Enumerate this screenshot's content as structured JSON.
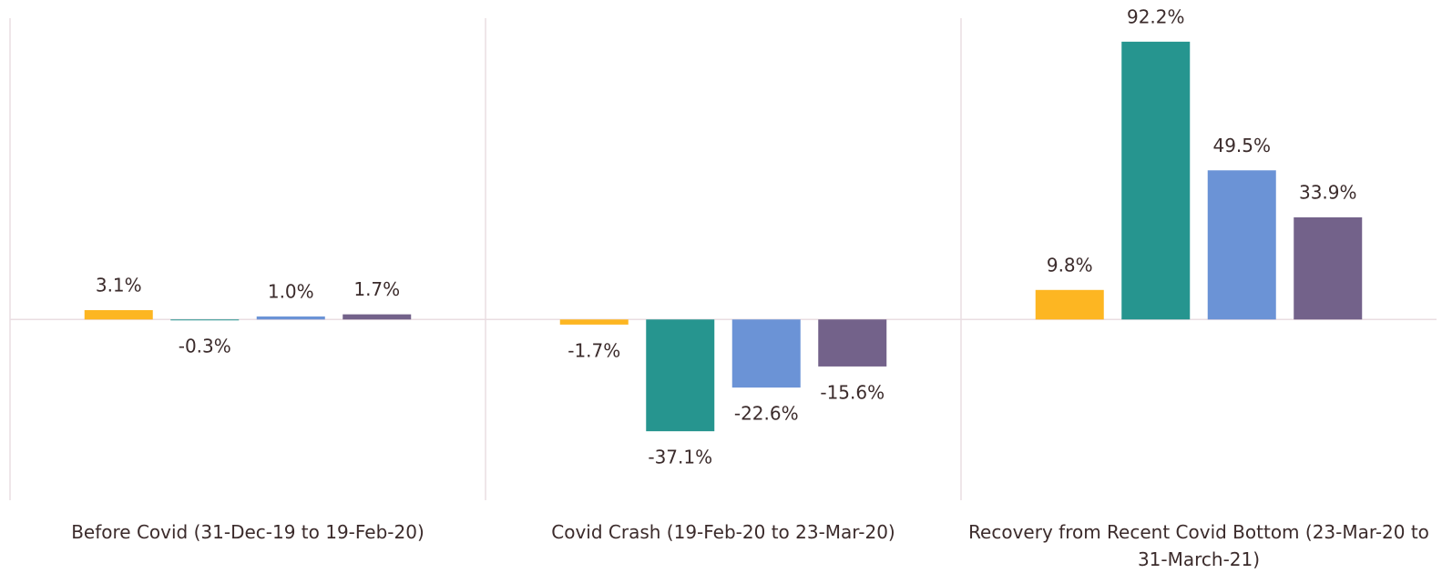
{
  "chart_data": {
    "type": "bar",
    "categories": [
      "Before Covid (31-Dec-19 to 19-Feb-20)",
      "Covid Crash (19-Feb-20 to 23-Mar-20)",
      "Recovery from Recent Covid Bottom (23-Mar-20 to 31-March-21)"
    ],
    "series": [
      {
        "color": "#fdb622",
        "values": [
          3.1,
          -1.7,
          9.8
        ],
        "value_labels": [
          "3.1%",
          "-1.7%",
          "9.8%"
        ]
      },
      {
        "color": "#26958f",
        "values": [
          -0.3,
          -37.1,
          92.2
        ],
        "value_labels": [
          "-0.3%",
          "-37.1%",
          "92.2%"
        ]
      },
      {
        "color": "#6b93d6",
        "values": [
          1.0,
          -22.6,
          49.5
        ],
        "value_labels": [
          "1.0%",
          "-22.6%",
          "49.5%"
        ]
      },
      {
        "color": "#73628a",
        "values": [
          1.7,
          -15.6,
          33.9
        ],
        "value_labels": [
          "1.7%",
          "-15.6%",
          "33.9%"
        ]
      }
    ],
    "ylim": [
      -60,
      100
    ]
  }
}
